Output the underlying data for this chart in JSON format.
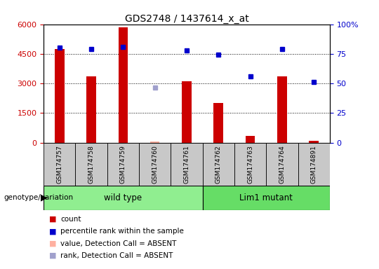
{
  "title": "GDS2748 / 1437614_x_at",
  "samples": [
    "GSM174757",
    "GSM174758",
    "GSM174759",
    "GSM174760",
    "GSM174761",
    "GSM174762",
    "GSM174763",
    "GSM174764",
    "GSM174891"
  ],
  "counts": [
    4750,
    3350,
    5850,
    50,
    3100,
    2000,
    350,
    3350,
    100
  ],
  "percentile_ranks": [
    80,
    79,
    81,
    null,
    78,
    74,
    56,
    79,
    51
  ],
  "absent_value": [
    null,
    null,
    null,
    50,
    null,
    null,
    null,
    null,
    null
  ],
  "absent_rank": [
    null,
    null,
    null,
    2800,
    null,
    null,
    null,
    null,
    null
  ],
  "is_absent": [
    false,
    false,
    false,
    true,
    false,
    false,
    false,
    false,
    false
  ],
  "wild_type_count": 5,
  "lim1_mutant_count": 4,
  "group_labels": [
    "wild type",
    "Lim1 mutant"
  ],
  "left_yticks": [
    0,
    1500,
    3000,
    4500,
    6000
  ],
  "right_yticks": [
    0,
    25,
    50,
    75,
    100
  ],
  "right_ytick_labels": [
    "0",
    "25",
    "50",
    "75",
    "100%"
  ],
  "bar_color": "#CC0000",
  "absent_bar_color": "#FFB0A0",
  "rank_color": "#0000CC",
  "absent_rank_color": "#A0A0CC",
  "wild_type_bg": "#90EE90",
  "lim1_bg": "#66DD66",
  "sample_bg": "#C8C8C8",
  "legend_entries": [
    {
      "color": "#CC0000",
      "label": "count"
    },
    {
      "color": "#0000CC",
      "label": "percentile rank within the sample"
    },
    {
      "color": "#FFB0A0",
      "label": "value, Detection Call = ABSENT"
    },
    {
      "color": "#A0A0CC",
      "label": "rank, Detection Call = ABSENT"
    }
  ]
}
